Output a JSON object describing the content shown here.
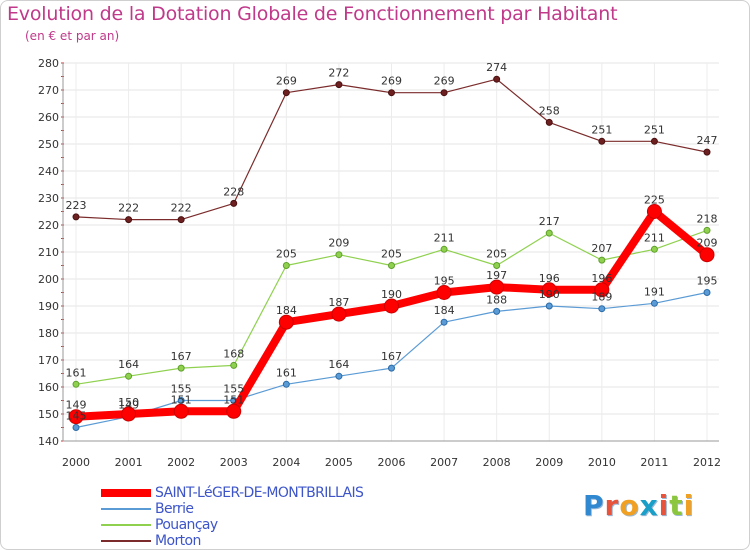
{
  "chart_data": {
    "type": "line",
    "title": "Evolution de la Dotation Globale de Fonctionnement par Habitant",
    "subtitle": "(en € et par an)",
    "xlabel": "",
    "ylabel": "",
    "x": [
      "2000",
      "2001",
      "2002",
      "2003",
      "2004",
      "2005",
      "2006",
      "2007",
      "2008",
      "2009",
      "2010",
      "2011",
      "2012"
    ],
    "ylim": [
      140,
      280
    ],
    "yticks": [
      140,
      150,
      160,
      170,
      180,
      190,
      200,
      210,
      220,
      230,
      240,
      250,
      260,
      270,
      280
    ],
    "grid": true,
    "legend_position": "bottom-left",
    "series": [
      {
        "name": "SAINT-LéGER-DE-MONTBRILLAIS",
        "color": "#ff0000",
        "values": [
          149,
          150,
          151,
          151,
          184,
          187,
          190,
          195,
          197,
          196,
          196,
          225,
          209
        ]
      },
      {
        "name": "Berrie",
        "color": "#5b9bd5",
        "values": [
          145,
          149,
          155,
          155,
          161,
          164,
          167,
          184,
          188,
          190,
          189,
          191,
          195
        ]
      },
      {
        "name": "Pouançay",
        "color": "#8fd14f",
        "values": [
          161,
          164,
          167,
          168,
          205,
          209,
          205,
          211,
          205,
          217,
          207,
          211,
          218
        ]
      },
      {
        "name": "Morton",
        "color": "#7b2b2b",
        "values": [
          223,
          222,
          222,
          228,
          269,
          272,
          269,
          269,
          274,
          258,
          251,
          251,
          247
        ]
      }
    ]
  },
  "branding": {
    "logo_text": "Proxiti",
    "letter_colors": [
      "#2f88d0",
      "#e8533b",
      "#f0a022",
      "#1aa0c8",
      "#e8533b",
      "#8cc63f",
      "#f0a022"
    ]
  }
}
